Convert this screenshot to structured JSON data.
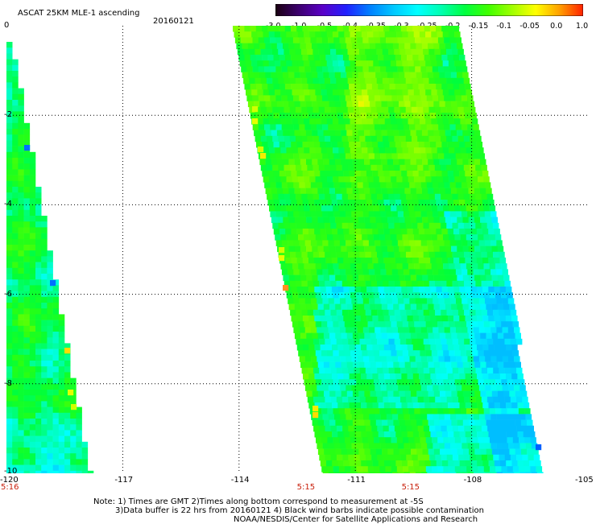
{
  "header": {
    "title": "ASCAT 25KM MLE-1 ascending",
    "date": "20160121"
  },
  "colorbar": {
    "labels": [
      "-3.0",
      "-1.0",
      "-0.5",
      "-0.4",
      "-0.35",
      "-0.3",
      "-0.25",
      "-0.2",
      "-0.15",
      "-0.1",
      "-0.05",
      "0.0",
      "1.0"
    ],
    "colors": [
      "#1a0010",
      "#3d0070",
      "#5a00c8",
      "#2020ff",
      "#0080ff",
      "#00c8ff",
      "#00ffff",
      "#00ffb0",
      "#00ff40",
      "#40ff00",
      "#a0ff00",
      "#ffff00",
      "#ffa000",
      "#ff2000"
    ]
  },
  "axes": {
    "x_ticks": [
      "-120",
      "-117",
      "-114",
      "-111",
      "-108",
      "-105"
    ],
    "y_ticks": [
      "0",
      "-2",
      "-4",
      "-6",
      "-8",
      "-10"
    ],
    "lon_range": [
      -120,
      -105
    ],
    "lat_range": [
      -10,
      0
    ],
    "gridlines": "dotted"
  },
  "times": [
    {
      "label": "5:16",
      "lon": -120
    },
    {
      "label": "5:15",
      "lon": -112.3
    },
    {
      "label": "5:15",
      "lon": -109.6
    }
  ],
  "notes": {
    "line1": "Note: 1) Times are GMT 2)Times along bottom correspond to measurement at -5S",
    "line2": "3)Data buffer is 22 hrs from 20160121 4) Black wind barbs indicate possible contamination",
    "line3": "NOAA/NESDIS/Center for Satellite Applications and Research"
  },
  "swaths": [
    {
      "name": "left",
      "value_range": [
        -0.3,
        -0.1
      ],
      "dominant": -0.2
    },
    {
      "name": "right",
      "value_range": [
        -0.3,
        -0.05
      ],
      "dominant": -0.15
    }
  ],
  "colors": {
    "time_label": "#c81e0a",
    "grid": "#000000"
  }
}
